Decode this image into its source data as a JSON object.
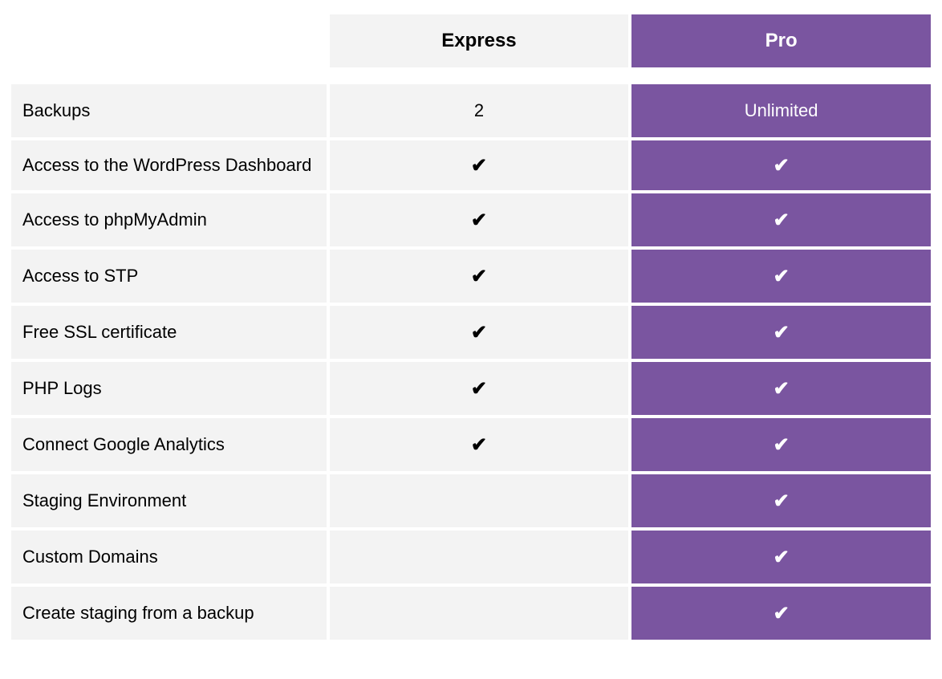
{
  "colors": {
    "cell_bg": "#f3f3f3",
    "accent_bg": "#7a55a0",
    "text": "#000000",
    "accent_text": "#ffffff",
    "page_bg": "#ffffff"
  },
  "typography": {
    "header_fontsize": 24,
    "body_fontsize": 22,
    "font_family": "Arial"
  },
  "icons": {
    "check": "✔"
  },
  "table": {
    "type": "table",
    "columns": [
      "feature",
      "express",
      "pro"
    ],
    "header": {
      "feature": "",
      "express": "Express",
      "pro": "Pro"
    },
    "rows": [
      {
        "feature": "Backups",
        "express": "2",
        "pro": "Unlimited",
        "express_is_check": false,
        "pro_is_check": false
      },
      {
        "feature": "Access to the WordPress Dashboard",
        "express": "✔",
        "pro": "✔",
        "express_is_check": true,
        "pro_is_check": true,
        "multiline": true
      },
      {
        "feature": "Access to phpMyAdmin",
        "express": "✔",
        "pro": "✔",
        "express_is_check": true,
        "pro_is_check": true
      },
      {
        "feature": "Access to STP",
        "express": "✔",
        "pro": "✔",
        "express_is_check": true,
        "pro_is_check": true
      },
      {
        "feature": "Free SSL certificate",
        "express": "✔",
        "pro": "✔",
        "express_is_check": true,
        "pro_is_check": true
      },
      {
        "feature": "PHP Logs",
        "express": "✔",
        "pro": "✔",
        "express_is_check": true,
        "pro_is_check": true
      },
      {
        "feature": "Connect Google Analytics",
        "express": "✔",
        "pro": "✔",
        "express_is_check": true,
        "pro_is_check": true
      },
      {
        "feature": "Staging Environment",
        "express": "",
        "pro": "✔",
        "express_is_check": false,
        "pro_is_check": true
      },
      {
        "feature": "Custom Domains",
        "express": "",
        "pro": "✔",
        "express_is_check": false,
        "pro_is_check": true
      },
      {
        "feature": "Create staging from a backup",
        "express": "",
        "pro": "✔",
        "express_is_check": false,
        "pro_is_check": true
      }
    ]
  }
}
